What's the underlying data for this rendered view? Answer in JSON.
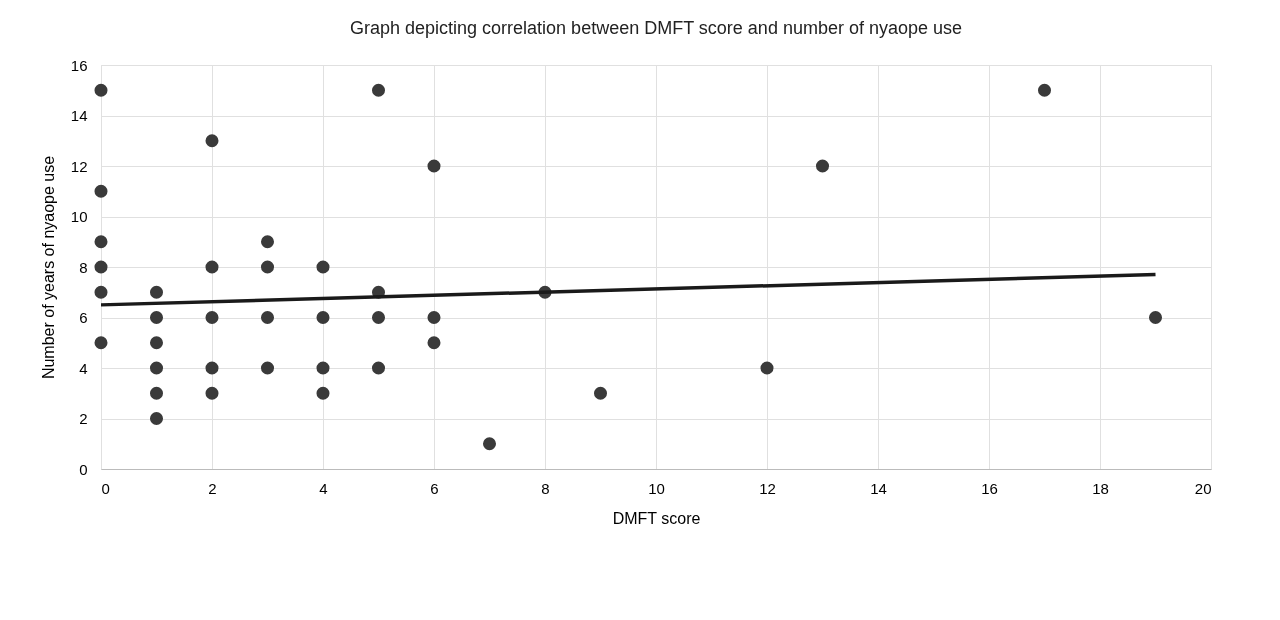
{
  "chart_data": {
    "type": "scatter",
    "title": "Graph depicting correlation between DMFT score and  number of nyaope use",
    "xlabel": "DMFT score",
    "ylabel": "Number of years of nyaope use",
    "xlim": [
      0,
      20
    ],
    "xticks": [
      0,
      2,
      4,
      6,
      8,
      10,
      12,
      14,
      16,
      18,
      20
    ],
    "ylim": [
      0,
      16
    ],
    "yticks": [
      0,
      2,
      4,
      6,
      8,
      10,
      12,
      14,
      16
    ],
    "grid": true,
    "legend": false,
    "series": [
      {
        "color": "#3a3a3a",
        "marker": "circle",
        "x": [
          0,
          0,
          0,
          0,
          0,
          0,
          1,
          1,
          1,
          1,
          1,
          1,
          2,
          2,
          2,
          2,
          2,
          3,
          3,
          3,
          3,
          4,
          4,
          4,
          4,
          5,
          5,
          5,
          5,
          6,
          6,
          6,
          7,
          8,
          9,
          12,
          13,
          17,
          19
        ],
        "values": [
          15,
          11,
          9,
          8,
          7,
          5,
          7,
          6,
          5,
          4,
          3,
          2,
          13,
          8,
          6,
          4,
          3,
          9,
          8,
          6,
          4,
          8,
          6,
          4,
          3,
          15,
          7,
          6,
          4,
          12,
          6,
          5,
          1,
          7,
          3,
          4,
          12,
          15,
          6
        ]
      },
      {
        "type": "line",
        "marker": "none",
        "color": "#1a1a1a",
        "x": [
          0,
          19
        ],
        "values": [
          6.5,
          7.7
        ]
      }
    ]
  }
}
